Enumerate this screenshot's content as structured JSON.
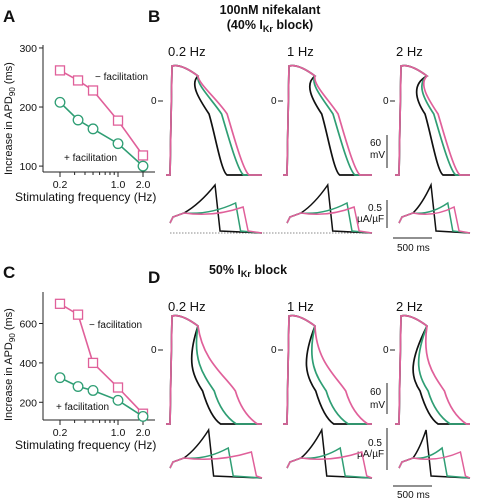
{
  "panels": {
    "A": "A",
    "B": "B",
    "C": "C",
    "D": "D"
  },
  "titles": {
    "top_line1": "100nM nifekalant",
    "top_line2_prefix": "(40% I",
    "top_line2_sub": "Kr",
    "top_line2_suffix": " block)",
    "bottom_prefix": "50% I",
    "bottom_sub": "Kr",
    "bottom_suffix": " block"
  },
  "frequencies": [
    "0.2 Hz",
    "1 Hz",
    "2 Hz"
  ],
  "trace_labels": {
    "zero": "0",
    "voltage_scale": "60",
    "voltage_unit": "mV",
    "current_scale": "0.5",
    "current_unit": "µA/µF",
    "time_scale": "500 ms"
  },
  "colors": {
    "minus_facilitation": "#e0609a",
    "plus_facilitation": "#2f9e74",
    "control": "#111111"
  },
  "chart_data": [
    {
      "type": "line",
      "panel": "A",
      "xlabel": "Stimulating frequency (Hz)",
      "ylabel_prefix": "Increase in APD",
      "ylabel_sub": "90",
      "ylabel_suffix": " (ms)",
      "x": [
        0.2,
        0.33,
        0.5,
        1.0,
        2.0
      ],
      "xticks": [
        "0.2",
        "1.0",
        "2.0"
      ],
      "yticks": [
        100,
        200,
        300
      ],
      "ylim": [
        90,
        305
      ],
      "series": [
        {
          "name": "− facilitation",
          "marker": "square",
          "values": [
            262,
            245,
            228,
            177,
            118
          ]
        },
        {
          "name": "+ facilitation",
          "marker": "circle",
          "values": [
            208,
            178,
            163,
            138,
            100
          ]
        }
      ]
    },
    {
      "type": "line",
      "panel": "C",
      "xlabel": "Stimulating frequency (Hz)",
      "ylabel_prefix": "Increase in APD",
      "ylabel_sub": "90",
      "ylabel_suffix": " (ms)",
      "x": [
        0.2,
        0.33,
        0.5,
        1.0,
        2.0
      ],
      "xticks": [
        "0.2",
        "1.0",
        "2.0"
      ],
      "yticks": [
        200,
        400,
        600
      ],
      "ylim": [
        110,
        760
      ],
      "series": [
        {
          "name": "− facilitation",
          "marker": "square",
          "values": [
            700,
            645,
            400,
            275,
            142
          ]
        },
        {
          "name": "+ facilitation",
          "marker": "circle",
          "values": [
            325,
            280,
            260,
            210,
            128
          ]
        }
      ]
    }
  ]
}
